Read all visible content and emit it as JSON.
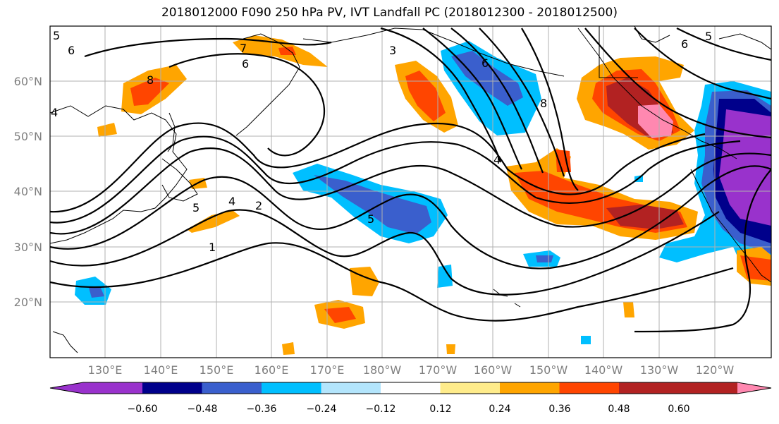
{
  "title": "2018012000 F090 250 hPa PV, IVT Landfall PC (2018012300 - 2018012500)",
  "map": {
    "lat_labels": [
      "60°N",
      "50°N",
      "40°N",
      "30°N",
      "20°N"
    ],
    "lon_labels": [
      "130°E",
      "140°E",
      "150°E",
      "160°E",
      "170°E",
      "180°W",
      "170°W",
      "160°W",
      "150°W",
      "140°W",
      "130°W",
      "120°W"
    ],
    "contour_labels": [
      "6",
      "7",
      "8",
      "6",
      "3",
      "6",
      "8",
      "5",
      "4",
      "2",
      "1",
      "5",
      "4",
      "6",
      "5",
      "4",
      "5"
    ],
    "label_color": "#7f7f7f"
  },
  "colorbar": {
    "colors": [
      "#9932cc",
      "#00008b",
      "#3a5fcd",
      "#00bfff",
      "#b3e5fc",
      "#ffffff",
      "#ffec8b",
      "#ffa500",
      "#ff4500",
      "#b22222",
      "#ff88b0"
    ],
    "tick_labels": [
      "−0.60",
      "−0.48",
      "−0.36",
      "−0.24",
      "−0.12",
      "0.12",
      "0.24",
      "0.36",
      "0.48",
      "0.60"
    ]
  }
}
